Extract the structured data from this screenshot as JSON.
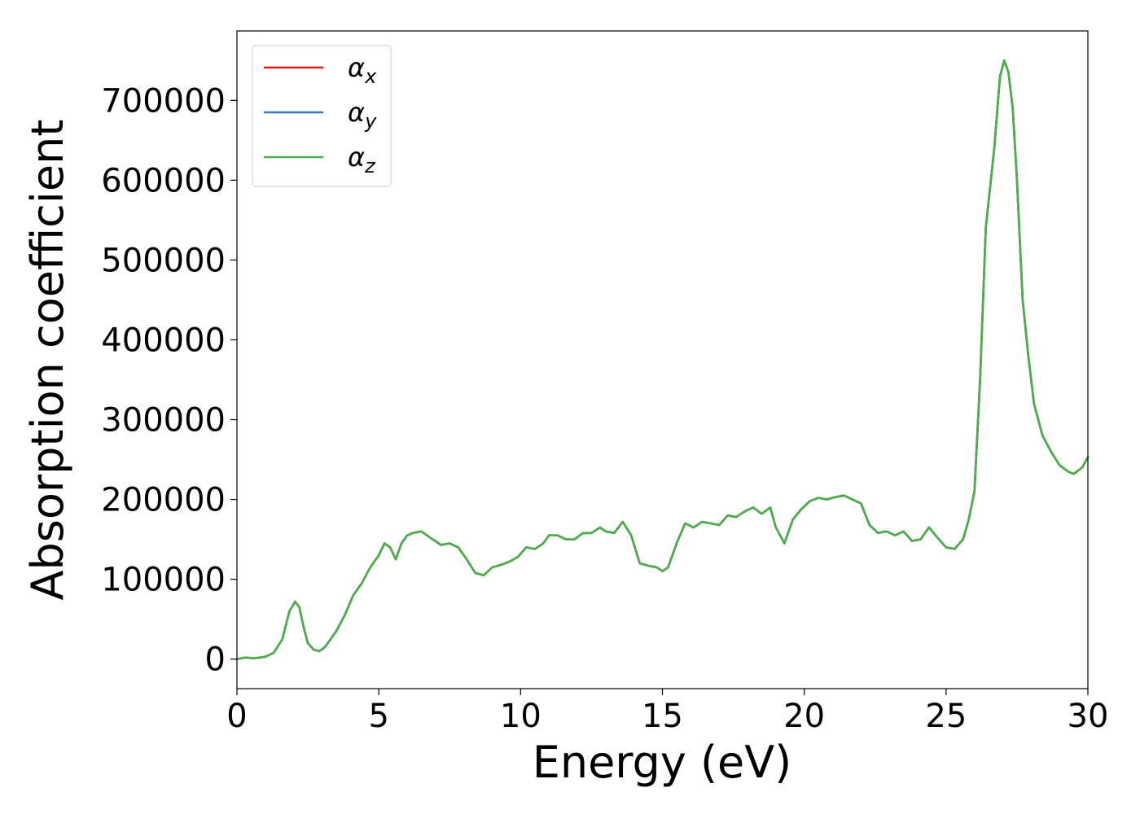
{
  "chart_data": {
    "type": "line",
    "title": "",
    "xlabel": "Energy (eV)",
    "ylabel": "Absorption coefficient",
    "xlim": [
      0,
      30
    ],
    "ylim": [
      -37000,
      787000
    ],
    "xticks": [
      0,
      5,
      10,
      15,
      20,
      25,
      30
    ],
    "xtick_labels": [
      "0",
      "5",
      "10",
      "15",
      "20",
      "25",
      "30"
    ],
    "yticks": [
      0,
      100000,
      200000,
      300000,
      400000,
      500000,
      600000,
      700000
    ],
    "ytick_labels": [
      "0",
      "100000",
      "200000",
      "300000",
      "400000",
      "500000",
      "600000",
      "700000"
    ],
    "grid": false,
    "legend_position": "top-left",
    "series": [
      {
        "name": "αx",
        "base": "α",
        "sub": "x",
        "color": "#e41a1c",
        "x": [
          0,
          0.3,
          0.6,
          1.0,
          1.3,
          1.6,
          1.85,
          2.05,
          2.2,
          2.35,
          2.5,
          2.7,
          2.9,
          3.1,
          3.3,
          3.5,
          3.8,
          4.1,
          4.4,
          4.7,
          5.0,
          5.2,
          5.4,
          5.6,
          5.8,
          6.0,
          6.2,
          6.5,
          6.9,
          7.2,
          7.5,
          7.8,
          8.1,
          8.4,
          8.7,
          9.0,
          9.3,
          9.6,
          9.9,
          10.2,
          10.5,
          10.8,
          11.0,
          11.3,
          11.6,
          11.9,
          12.2,
          12.5,
          12.8,
          13.0,
          13.3,
          13.6,
          13.9,
          14.2,
          14.5,
          14.8,
          15.0,
          15.2,
          15.5,
          15.8,
          16.1,
          16.4,
          16.7,
          17.0,
          17.3,
          17.6,
          17.9,
          18.2,
          18.5,
          18.8,
          19.0,
          19.3,
          19.6,
          19.9,
          20.2,
          20.5,
          20.8,
          21.1,
          21.4,
          21.7,
          22.0,
          22.3,
          22.6,
          22.9,
          23.2,
          23.5,
          23.8,
          24.1,
          24.4,
          24.7,
          25.0,
          25.3,
          25.6,
          25.8,
          26.0,
          26.2,
          26.4,
          26.7,
          26.9,
          27.05,
          27.2,
          27.35,
          27.5,
          27.7,
          27.9,
          28.1,
          28.4,
          28.7,
          29.0,
          29.3,
          29.5,
          29.8,
          30.0
        ],
        "y": [
          0,
          2000,
          1000,
          3000,
          8000,
          25000,
          60000,
          72000,
          65000,
          40000,
          20000,
          12000,
          10000,
          15000,
          25000,
          35000,
          55000,
          80000,
          95000,
          115000,
          130000,
          145000,
          140000,
          125000,
          145000,
          155000,
          158000,
          160000,
          150000,
          143000,
          145000,
          140000,
          125000,
          108000,
          105000,
          115000,
          118000,
          122000,
          128000,
          140000,
          138000,
          145000,
          155000,
          155000,
          150000,
          150000,
          158000,
          158000,
          165000,
          160000,
          158000,
          172000,
          155000,
          120000,
          117000,
          115000,
          110000,
          115000,
          145000,
          170000,
          165000,
          172000,
          170000,
          168000,
          180000,
          178000,
          185000,
          190000,
          182000,
          190000,
          165000,
          145000,
          175000,
          188000,
          198000,
          202000,
          200000,
          203000,
          205000,
          200000,
          195000,
          168000,
          158000,
          160000,
          155000,
          160000,
          148000,
          150000,
          165000,
          152000,
          140000,
          138000,
          150000,
          175000,
          210000,
          350000,
          540000,
          640000,
          730000,
          750000,
          735000,
          690000,
          600000,
          450000,
          380000,
          320000,
          280000,
          260000,
          243000,
          235000,
          232000,
          240000,
          253000
        ]
      },
      {
        "name": "αy",
        "base": "α",
        "sub": "y",
        "color": "#377eb8",
        "x": [
          0,
          0.3,
          0.6,
          1.0,
          1.3,
          1.6,
          1.85,
          2.05,
          2.2,
          2.35,
          2.5,
          2.7,
          2.9,
          3.1,
          3.3,
          3.5,
          3.8,
          4.1,
          4.4,
          4.7,
          5.0,
          5.2,
          5.4,
          5.6,
          5.8,
          6.0,
          6.2,
          6.5,
          6.9,
          7.2,
          7.5,
          7.8,
          8.1,
          8.4,
          8.7,
          9.0,
          9.3,
          9.6,
          9.9,
          10.2,
          10.5,
          10.8,
          11.0,
          11.3,
          11.6,
          11.9,
          12.2,
          12.5,
          12.8,
          13.0,
          13.3,
          13.6,
          13.9,
          14.2,
          14.5,
          14.8,
          15.0,
          15.2,
          15.5,
          15.8,
          16.1,
          16.4,
          16.7,
          17.0,
          17.3,
          17.6,
          17.9,
          18.2,
          18.5,
          18.8,
          19.0,
          19.3,
          19.6,
          19.9,
          20.2,
          20.5,
          20.8,
          21.1,
          21.4,
          21.7,
          22.0,
          22.3,
          22.6,
          22.9,
          23.2,
          23.5,
          23.8,
          24.1,
          24.4,
          24.7,
          25.0,
          25.3,
          25.6,
          25.8,
          26.0,
          26.2,
          26.4,
          26.7,
          26.9,
          27.05,
          27.2,
          27.35,
          27.5,
          27.7,
          27.9,
          28.1,
          28.4,
          28.7,
          29.0,
          29.3,
          29.5,
          29.8,
          30.0
        ],
        "y": [
          0,
          2000,
          1000,
          3000,
          8000,
          25000,
          60000,
          72000,
          65000,
          40000,
          20000,
          12000,
          10000,
          15000,
          25000,
          35000,
          55000,
          80000,
          95000,
          115000,
          130000,
          145000,
          140000,
          125000,
          145000,
          155000,
          158000,
          160000,
          150000,
          143000,
          145000,
          140000,
          125000,
          108000,
          105000,
          115000,
          118000,
          122000,
          128000,
          140000,
          138000,
          145000,
          155000,
          155000,
          150000,
          150000,
          158000,
          158000,
          165000,
          160000,
          158000,
          172000,
          155000,
          120000,
          117000,
          115000,
          110000,
          115000,
          145000,
          170000,
          165000,
          172000,
          170000,
          168000,
          180000,
          178000,
          185000,
          190000,
          182000,
          190000,
          165000,
          145000,
          175000,
          188000,
          198000,
          202000,
          200000,
          203000,
          205000,
          200000,
          195000,
          168000,
          158000,
          160000,
          155000,
          160000,
          148000,
          150000,
          165000,
          152000,
          140000,
          138000,
          150000,
          175000,
          210000,
          350000,
          540000,
          640000,
          730000,
          750000,
          735000,
          690000,
          600000,
          450000,
          380000,
          320000,
          280000,
          260000,
          243000,
          235000,
          232000,
          240000,
          253000
        ]
      },
      {
        "name": "αz",
        "base": "α",
        "sub": "z",
        "color": "#4daf4a",
        "x": [
          0,
          0.3,
          0.6,
          1.0,
          1.3,
          1.6,
          1.85,
          2.05,
          2.2,
          2.35,
          2.5,
          2.7,
          2.9,
          3.1,
          3.3,
          3.5,
          3.8,
          4.1,
          4.4,
          4.7,
          5.0,
          5.2,
          5.4,
          5.6,
          5.8,
          6.0,
          6.2,
          6.5,
          6.9,
          7.2,
          7.5,
          7.8,
          8.1,
          8.4,
          8.7,
          9.0,
          9.3,
          9.6,
          9.9,
          10.2,
          10.5,
          10.8,
          11.0,
          11.3,
          11.6,
          11.9,
          12.2,
          12.5,
          12.8,
          13.0,
          13.3,
          13.6,
          13.9,
          14.2,
          14.5,
          14.8,
          15.0,
          15.2,
          15.5,
          15.8,
          16.1,
          16.4,
          16.7,
          17.0,
          17.3,
          17.6,
          17.9,
          18.2,
          18.5,
          18.8,
          19.0,
          19.3,
          19.6,
          19.9,
          20.2,
          20.5,
          20.8,
          21.1,
          21.4,
          21.7,
          22.0,
          22.3,
          22.6,
          22.9,
          23.2,
          23.5,
          23.8,
          24.1,
          24.4,
          24.7,
          25.0,
          25.3,
          25.6,
          25.8,
          26.0,
          26.2,
          26.4,
          26.7,
          26.9,
          27.05,
          27.2,
          27.35,
          27.5,
          27.7,
          27.9,
          28.1,
          28.4,
          28.7,
          29.0,
          29.3,
          29.5,
          29.8,
          30.0
        ],
        "y": [
          0,
          2000,
          1000,
          3000,
          8000,
          25000,
          60000,
          72000,
          65000,
          40000,
          20000,
          12000,
          10000,
          15000,
          25000,
          35000,
          55000,
          80000,
          95000,
          115000,
          130000,
          145000,
          140000,
          125000,
          145000,
          155000,
          158000,
          160000,
          150000,
          143000,
          145000,
          140000,
          125000,
          108000,
          105000,
          115000,
          118000,
          122000,
          128000,
          140000,
          138000,
          145000,
          155000,
          155000,
          150000,
          150000,
          158000,
          158000,
          165000,
          160000,
          158000,
          172000,
          155000,
          120000,
          117000,
          115000,
          110000,
          115000,
          145000,
          170000,
          165000,
          172000,
          170000,
          168000,
          180000,
          178000,
          185000,
          190000,
          182000,
          190000,
          165000,
          145000,
          175000,
          188000,
          198000,
          202000,
          200000,
          203000,
          205000,
          200000,
          195000,
          168000,
          158000,
          160000,
          155000,
          160000,
          148000,
          150000,
          165000,
          152000,
          140000,
          138000,
          150000,
          175000,
          210000,
          350000,
          540000,
          640000,
          730000,
          750000,
          735000,
          690000,
          600000,
          450000,
          380000,
          320000,
          280000,
          260000,
          243000,
          235000,
          232000,
          240000,
          253000
        ]
      }
    ]
  }
}
